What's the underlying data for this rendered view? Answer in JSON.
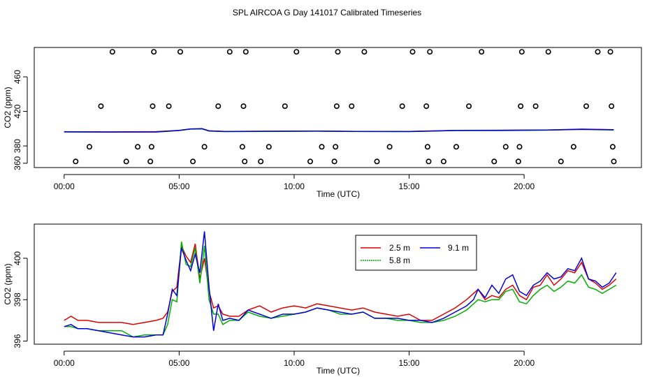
{
  "title": "SPL AIRCOA G  Day 141017  Calibrated Timeseries",
  "chart_data": [
    {
      "type": "line",
      "panel": "top",
      "xlabel": "Time (UTC)",
      "ylabel": "CO2 (ppm)",
      "xlim": [
        -1.3,
        25.1
      ],
      "ylim": [
        355,
        494
      ],
      "x_ticks": [
        0,
        5,
        10,
        15,
        20
      ],
      "x_tick_labels": [
        "00:00",
        "05:00",
        "10:00",
        "15:00",
        "20:00"
      ],
      "y_ticks": [
        360,
        380,
        420,
        460
      ],
      "y_tick_labels": [
        "360",
        "380",
        "420",
        "460"
      ],
      "series": [
        {
          "color": "#e00000",
          "x": [
            0,
            2,
            4,
            5,
            5.5,
            6,
            6.3,
            7,
            9,
            11,
            13,
            15,
            17,
            19,
            21,
            22.5,
            23.9
          ],
          "values": [
            396.5,
            396.3,
            396.6,
            398,
            399.8,
            399.8,
            397.5,
            396.8,
            397,
            397.3,
            396.8,
            396.9,
            398,
            398.2,
            398.5,
            399.5,
            398.8
          ]
        },
        {
          "color": "#00b000",
          "x": [
            0,
            2,
            4,
            5,
            5.5,
            6,
            6.3,
            7,
            9,
            11,
            13,
            15,
            17,
            19,
            21,
            22.5,
            23.9
          ],
          "values": [
            396.2,
            396.0,
            396.1,
            397.8,
            399.5,
            399.6,
            397.2,
            396.6,
            396.9,
            397.1,
            396.7,
            396.6,
            397.8,
            397.8,
            398.3,
            399.1,
            398.5
          ]
        },
        {
          "color": "#0000e0",
          "x": [
            0,
            2,
            4,
            5,
            5.5,
            6,
            6.3,
            7,
            9,
            11,
            13,
            15,
            17,
            19,
            21,
            22.5,
            23.9
          ],
          "values": [
            396.3,
            396.1,
            396.2,
            398,
            399.6,
            400,
            397.4,
            396.7,
            397,
            397.2,
            396.8,
            396.7,
            397.9,
            398.1,
            398.4,
            399.3,
            398.7
          ]
        }
      ],
      "circles": {
        "x": [
          0.5,
          1.1,
          1.6,
          2.1,
          2.7,
          3.2,
          3.75,
          3.8,
          3.85,
          3.9,
          4.55,
          5.05,
          5.6,
          6.1,
          6.7,
          7.2,
          7.75,
          7.8,
          7.85,
          7.9,
          8.55,
          8.9,
          9.6,
          10.1,
          10.7,
          11.2,
          11.75,
          11.8,
          11.85,
          11.9,
          12.5,
          13.05,
          13.6,
          14.15,
          14.7,
          15.15,
          15.75,
          15.8,
          15.85,
          15.9,
          16.5,
          17.05,
          17.6,
          18.15,
          18.7,
          19.2,
          19.75,
          19.8,
          19.85,
          19.9,
          20.5,
          21.05,
          21.6,
          22.15,
          22.7,
          23.2,
          23.75,
          23.8,
          23.85,
          23.9
        ],
        "values": [
          362,
          379,
          426,
          489,
          362,
          379,
          362,
          379,
          426,
          489,
          426,
          489,
          362,
          379,
          426,
          489,
          379,
          426,
          362,
          489,
          362,
          379,
          426,
          489,
          362,
          379,
          362,
          379,
          426,
          489,
          426,
          489,
          362,
          379,
          426,
          489,
          426,
          379,
          362,
          489,
          362,
          379,
          426,
          489,
          362,
          379,
          362,
          379,
          426,
          489,
          426,
          489,
          362,
          379,
          426,
          489,
          489,
          426,
          379,
          362
        ]
      }
    },
    {
      "type": "line",
      "panel": "bottom",
      "xlabel": "Time (UTC)",
      "ylabel": "CO2 (ppm)",
      "xlim": [
        -1.3,
        25.1
      ],
      "ylim": [
        395.85,
        401.65
      ],
      "x_ticks": [
        0,
        5,
        10,
        15,
        20
      ],
      "x_tick_labels": [
        "00:00",
        "05:00",
        "10:00",
        "15:00",
        "20:00"
      ],
      "y_ticks": [
        396,
        398,
        400
      ],
      "y_tick_labels": [
        "396",
        "398",
        "400"
      ],
      "legend": {
        "position": "top-right-inside",
        "entries": [
          "2.5 m",
          "5.8 m",
          "9.1 m"
        ]
      },
      "series": [
        {
          "name": "2.5 m",
          "color": "#e00000",
          "x": [
            0,
            0.3,
            0.6,
            1.0,
            1.5,
            2.0,
            2.5,
            3.0,
            3.5,
            4.0,
            4.3,
            4.5,
            4.7,
            4.9,
            5.1,
            5.3,
            5.5,
            5.7,
            5.9,
            6.1,
            6.3,
            6.5,
            6.7,
            6.9,
            7.2,
            7.6,
            8.0,
            8.5,
            9.0,
            9.5,
            10.0,
            10.5,
            11.0,
            11.5,
            12.0,
            12.5,
            13.0,
            13.5,
            14.0,
            14.5,
            15.0,
            15.5,
            16.0,
            16.5,
            17.0,
            17.5,
            17.8,
            18.0,
            18.3,
            18.6,
            18.9,
            19.2,
            19.5,
            19.8,
            20.1,
            20.4,
            20.7,
            21.0,
            21.3,
            21.6,
            21.9,
            22.2,
            22.5,
            22.8,
            23.1,
            23.4,
            23.7,
            24.0
          ],
          "values": [
            397.0,
            397.2,
            397.0,
            397.0,
            396.9,
            396.9,
            396.9,
            396.8,
            396.9,
            397.0,
            397.1,
            397.4,
            398.4,
            398.6,
            400.6,
            400.1,
            399.8,
            400.7,
            399.0,
            400.0,
            398.4,
            397.6,
            397.7,
            397.3,
            397.2,
            397.2,
            397.5,
            397.7,
            397.4,
            397.6,
            397.7,
            397.6,
            397.8,
            397.7,
            397.6,
            397.5,
            397.6,
            397.4,
            397.3,
            397.2,
            397.3,
            397.0,
            397.0,
            397.3,
            397.6,
            398.0,
            398.3,
            398.5,
            398.0,
            398.2,
            398.1,
            398.5,
            398.7,
            398.2,
            398.0,
            398.6,
            398.7,
            399.2,
            398.7,
            399.0,
            399.4,
            399.3,
            399.8,
            399.0,
            398.8,
            398.5,
            398.7,
            399.0
          ]
        },
        {
          "name": "5.8 m",
          "color": "#00b000",
          "x": [
            0,
            0.3,
            0.6,
            1.0,
            1.5,
            2.0,
            2.5,
            3.0,
            3.5,
            4.0,
            4.3,
            4.5,
            4.7,
            4.9,
            5.1,
            5.3,
            5.5,
            5.7,
            5.9,
            6.1,
            6.3,
            6.5,
            6.7,
            6.9,
            7.2,
            7.6,
            8.0,
            8.5,
            9.0,
            9.5,
            10.0,
            10.5,
            11.0,
            11.5,
            12.0,
            12.5,
            13.0,
            13.5,
            14.0,
            14.5,
            15.0,
            15.5,
            16.0,
            16.5,
            17.0,
            17.5,
            17.8,
            18.0,
            18.3,
            18.6,
            18.9,
            19.2,
            19.5,
            19.8,
            20.1,
            20.4,
            20.7,
            21.0,
            21.3,
            21.6,
            21.9,
            22.2,
            22.5,
            22.8,
            23.1,
            23.4,
            23.7,
            24.0
          ],
          "values": [
            396.7,
            396.7,
            396.6,
            396.6,
            396.5,
            396.5,
            396.5,
            396.2,
            396.3,
            396.3,
            396.3,
            396.8,
            398.0,
            397.9,
            400.8,
            399.7,
            399.6,
            400.5,
            398.8,
            400.6,
            398.0,
            397.3,
            397.3,
            396.8,
            397.0,
            397.0,
            397.4,
            397.2,
            397.1,
            397.2,
            397.3,
            397.4,
            397.6,
            397.5,
            397.3,
            397.3,
            397.4,
            397.1,
            397.1,
            397.0,
            397.0,
            396.9,
            396.9,
            397.0,
            397.2,
            397.5,
            397.8,
            398.0,
            397.9,
            398.0,
            398.0,
            398.4,
            398.5,
            397.9,
            397.8,
            398.2,
            398.5,
            398.7,
            398.4,
            398.6,
            398.9,
            398.8,
            399.2,
            398.6,
            398.5,
            398.3,
            398.5,
            398.7
          ]
        },
        {
          "name": "9.1 m",
          "color": "#0000e0",
          "x": [
            0,
            0.3,
            0.6,
            1.0,
            1.5,
            2.0,
            2.5,
            3.0,
            3.5,
            4.0,
            4.3,
            4.5,
            4.7,
            4.9,
            5.1,
            5.3,
            5.5,
            5.7,
            5.9,
            6.1,
            6.3,
            6.5,
            6.7,
            6.9,
            7.2,
            7.6,
            8.0,
            8.5,
            9.0,
            9.5,
            10.0,
            10.5,
            11.0,
            11.5,
            12.0,
            12.5,
            13.0,
            13.5,
            14.0,
            14.5,
            15.0,
            15.5,
            16.0,
            16.5,
            17.0,
            17.5,
            17.8,
            18.0,
            18.3,
            18.6,
            18.9,
            19.2,
            19.5,
            19.8,
            20.1,
            20.4,
            20.7,
            21.0,
            21.3,
            21.6,
            21.9,
            22.2,
            22.5,
            22.8,
            23.1,
            23.4,
            23.7,
            24.0
          ],
          "values": [
            396.7,
            396.8,
            396.6,
            396.6,
            396.5,
            396.4,
            396.3,
            396.2,
            396.2,
            396.3,
            396.3,
            397.3,
            398.5,
            398.2,
            400.5,
            399.9,
            399.4,
            400.2,
            399.3,
            401.3,
            398.6,
            396.5,
            397.8,
            397.0,
            397.1,
            397.0,
            397.5,
            397.3,
            397.1,
            397.3,
            397.3,
            397.4,
            397.6,
            397.5,
            397.4,
            397.3,
            397.4,
            397.1,
            397.1,
            397.1,
            397.0,
            397.0,
            396.9,
            397.1,
            397.4,
            397.7,
            398.0,
            398.5,
            398.1,
            398.7,
            398.3,
            399.0,
            399.2,
            398.4,
            398.2,
            398.7,
            398.9,
            399.3,
            399.0,
            399.1,
            399.5,
            399.4,
            400.0,
            399.0,
            398.9,
            398.6,
            398.8,
            399.3
          ]
        }
      ]
    }
  ]
}
